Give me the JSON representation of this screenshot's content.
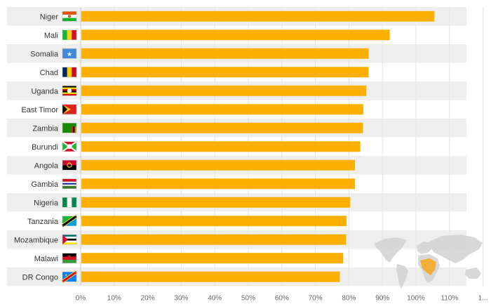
{
  "chart_data": {
    "type": "bar",
    "orientation": "horizontal",
    "categories": [
      "Niger",
      "Mali",
      "Somalia",
      "Chad",
      "Uganda",
      "East Timor",
      "Zambia",
      "Burundi",
      "Angola",
      "Gambia",
      "Nigeria",
      "Tanzania",
      "Mozambique",
      "Malawi",
      "DR Congo"
    ],
    "values": [
      105.5,
      92.2,
      85.9,
      85.9,
      85.2,
      84.3,
      84.2,
      83.4,
      81.8,
      81.8,
      80.4,
      79.3,
      79.2,
      78.3,
      77.3
    ],
    "value_unit": "%",
    "xlim": [
      0,
      120
    ],
    "x_ticks": [
      "0%",
      "10%",
      "20%",
      "30%",
      "40%",
      "50%",
      "60%",
      "70%",
      "80%",
      "90%",
      "100%",
      "110%",
      "1..."
    ],
    "title": "",
    "xlabel": "",
    "ylabel": "",
    "grid": true,
    "legend": "none",
    "colors": {
      "bar": "#fbb000",
      "row_band": "#eeeeee",
      "grid": "#e4e4e4",
      "axis": "#cccccc",
      "map_land": "#d2d2d2",
      "map_highlight": "#f5a623"
    },
    "flag_icons": [
      "flag-niger-icon",
      "flag-mali-icon",
      "flag-somalia-icon",
      "flag-chad-icon",
      "flag-uganda-icon",
      "flag-east-timor-icon",
      "flag-zambia-icon",
      "flag-burundi-icon",
      "flag-angola-icon",
      "flag-gambia-icon",
      "flag-nigeria-icon",
      "flag-tanzania-icon",
      "flag-mozambique-icon",
      "flag-malawi-icon",
      "flag-dr-congo-icon"
    ]
  }
}
